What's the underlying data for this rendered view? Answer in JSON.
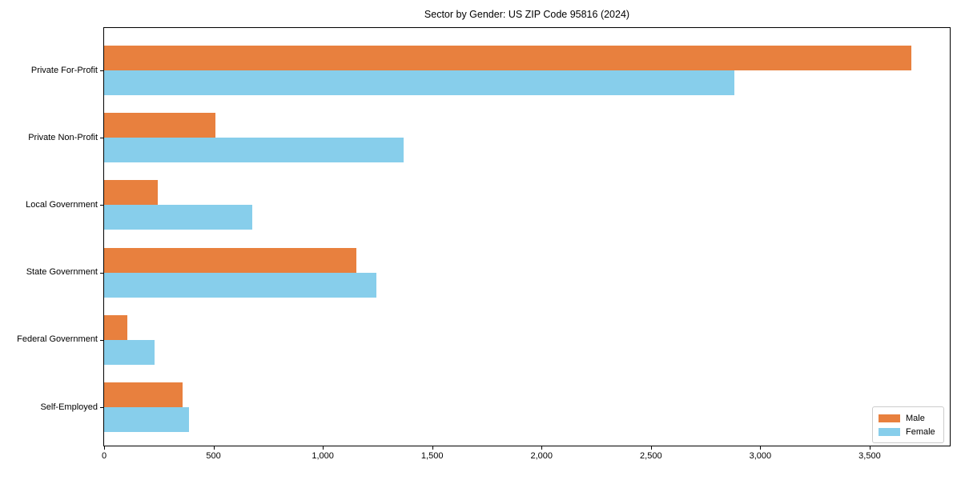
{
  "chart_data": {
    "type": "bar",
    "orientation": "horizontal",
    "grouped": true,
    "title": "Sector by Gender: US ZIP Code 95816 (2024)",
    "categories": [
      "Private For-Profit",
      "Private Non-Profit",
      "Local Government",
      "State Government",
      "Federal Government",
      "Self-Employed"
    ],
    "series": [
      {
        "name": "Male",
        "color": "#e8803e",
        "values": [
          3690,
          508,
          246,
          1154,
          105,
          357
        ]
      },
      {
        "name": "Female",
        "color": "#87ceeb",
        "values": [
          2880,
          1371,
          676,
          1244,
          230,
          387
        ]
      }
    ],
    "xlabel": "",
    "ylabel": "",
    "xlim": [
      0,
      3870
    ],
    "xticks": [
      0,
      500,
      1000,
      1500,
      2000,
      2500,
      3000,
      3500
    ],
    "xtick_labels": [
      "0",
      "500",
      "1,000",
      "1,500",
      "2,000",
      "2,500",
      "3,000",
      "3,500"
    ],
    "grid": false,
    "legend": {
      "position": "lower right",
      "items": [
        "Male",
        "Female"
      ]
    }
  }
}
